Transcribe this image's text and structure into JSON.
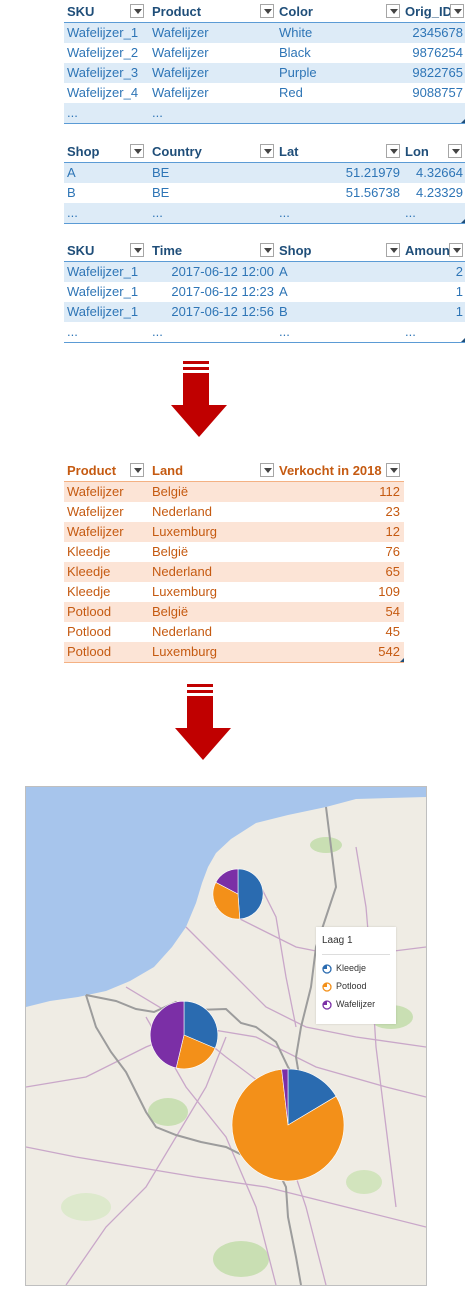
{
  "table1": {
    "headers": [
      "SKU",
      "Product",
      "Color",
      "Orig_ID"
    ],
    "rows": [
      [
        "Wafelijzer_1",
        "Wafelijzer",
        "White",
        "2345678"
      ],
      [
        "Wafelijzer_2",
        "Wafelijzer",
        "Black",
        "9876254"
      ],
      [
        "Wafelijzer_3",
        "Wafelijzer",
        "Purple",
        "9822765"
      ],
      [
        "Wafelijzer_4",
        "Wafelijzer",
        "Red",
        "9088757"
      ],
      [
        "...",
        "...",
        "",
        ""
      ]
    ]
  },
  "table2": {
    "headers": [
      "Shop",
      "Country",
      "Lat",
      "Lon"
    ],
    "rows": [
      [
        "A",
        "BE",
        "51.21979",
        "4.32664"
      ],
      [
        "B",
        "BE",
        "51.56738",
        "4.23329"
      ],
      [
        "...",
        "...",
        "...",
        "..."
      ]
    ]
  },
  "table3": {
    "headers": [
      "SKU",
      "Time",
      "Shop",
      "Amount"
    ],
    "rows": [
      [
        "Wafelijzer_1",
        "2017-06-12 12:00",
        "A",
        "2"
      ],
      [
        "Wafelijzer_1",
        "2017-06-12 12:23",
        "A",
        "1"
      ],
      [
        "Wafelijzer_1",
        "2017-06-12 12:56",
        "B",
        "1"
      ],
      [
        "...",
        "...",
        "...",
        "..."
      ]
    ]
  },
  "table4": {
    "headers": [
      "Product",
      "Land",
      "Verkocht in 2018"
    ],
    "rows": [
      [
        "Wafelijzer",
        "België",
        "112"
      ],
      [
        "Wafelijzer",
        "Nederland",
        "23"
      ],
      [
        "Wafelijzer",
        "Luxemburg",
        "12"
      ],
      [
        "Kleedje",
        "België",
        "76"
      ],
      [
        "Kleedje",
        "Nederland",
        "65"
      ],
      [
        "Kleedje",
        "Luxemburg",
        "109"
      ],
      [
        "Potlood",
        "België",
        "54"
      ],
      [
        "Potlood",
        "Nederland",
        "45"
      ],
      [
        "Potlood",
        "Luxemburg",
        "542"
      ]
    ]
  },
  "map": {
    "legend_title": "Laag 1",
    "legend_items": [
      "Kleedje",
      "Potlood",
      "Wafelijzer"
    ],
    "colors": {
      "Kleedje": "#2a6bb0",
      "Potlood": "#f39019",
      "Wafelijzer": "#7b2fa6"
    },
    "pies": [
      {
        "country": "Nederland",
        "Kleedje": 65,
        "Potlood": 45,
        "Wafelijzer": 23
      },
      {
        "country": "België",
        "Kleedje": 76,
        "Potlood": 54,
        "Wafelijzer": 112
      },
      {
        "country": "Luxemburg",
        "Kleedje": 109,
        "Potlood": 542,
        "Wafelijzer": 12
      }
    ]
  },
  "colors": {
    "arrow": "#c00000",
    "table_blue": "#ddebf7",
    "table_orange": "#fce4d6"
  }
}
